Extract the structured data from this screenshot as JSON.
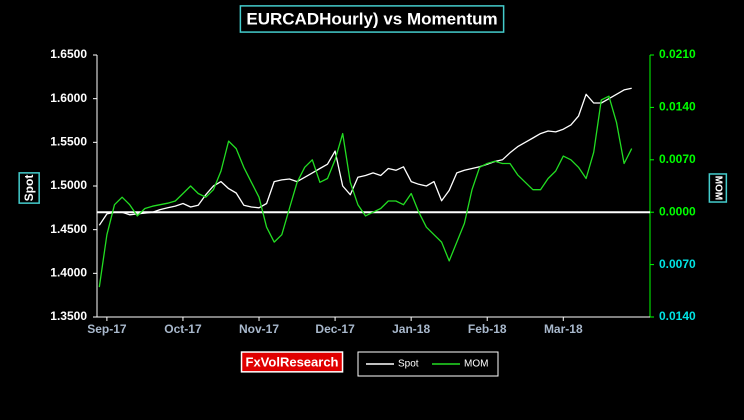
{
  "chart_data": {
    "type": "line",
    "title": "EURCADHourly) vs Momentum",
    "y_label": "Spot",
    "y2_label": "MOM",
    "watermark": "FxVolResearch",
    "x": [
      -0.1,
      0,
      0.1,
      0.2,
      0.3,
      0.4,
      0.5,
      0.6,
      0.7,
      0.8,
      0.9,
      1.0,
      1.1,
      1.2,
      1.3,
      1.4,
      1.5,
      1.6,
      1.7,
      1.8,
      1.9,
      2.0,
      2.1,
      2.2,
      2.3,
      2.4,
      2.5,
      2.6,
      2.7,
      2.8,
      2.9,
      3.0,
      3.1,
      3.2,
      3.3,
      3.4,
      3.5,
      3.6,
      3.7,
      3.8,
      3.9,
      4.0,
      4.1,
      4.2,
      4.3,
      4.4,
      4.5,
      4.6,
      4.7,
      4.8,
      4.9,
      5.0,
      5.1,
      5.2,
      5.3,
      5.4,
      5.5,
      5.6,
      5.7,
      5.8,
      5.9,
      6.0,
      6.1,
      6.2,
      6.3,
      6.4,
      6.5,
      6.6,
      6.7,
      6.8,
      6.9
    ],
    "xlim": [
      -0.13,
      7.14
    ],
    "xticks": [
      {
        "value": 0,
        "label": "Sep-17"
      },
      {
        "value": 1,
        "label": "Oct-17"
      },
      {
        "value": 2,
        "label": "Nov-17"
      },
      {
        "value": 3,
        "label": "Dec-17"
      },
      {
        "value": 4,
        "label": "Jan-18"
      },
      {
        "value": 5,
        "label": "Feb-18"
      },
      {
        "value": 6,
        "label": "Mar-18"
      }
    ],
    "ylim": [
      1.35,
      1.65
    ],
    "yticks": [
      {
        "value": 1.35,
        "label": "1.3500"
      },
      {
        "value": 1.4,
        "label": "1.4000"
      },
      {
        "value": 1.45,
        "label": "1.4500"
      },
      {
        "value": 1.5,
        "label": "1.5000"
      },
      {
        "value": 1.55,
        "label": "1.5500"
      },
      {
        "value": 1.6,
        "label": "1.6000"
      },
      {
        "value": 1.65,
        "label": "1.6500"
      }
    ],
    "y2lim": [
      -0.014,
      0.021
    ],
    "y2ticks": [
      {
        "value": -0.014,
        "label": "0.0140"
      },
      {
        "value": -0.007,
        "label": "0.0070"
      },
      {
        "value": 0,
        "label": "0.0000"
      },
      {
        "value": 0.007,
        "label": "0.0070"
      },
      {
        "value": 0.014,
        "label": "0.0140"
      },
      {
        "value": 0.021,
        "label": "0.0210"
      }
    ],
    "y2tick_color": "#00ff00",
    "series": [
      {
        "name": "Spot",
        "color": "#ffffff",
        "values": [
          1.455,
          1.468,
          1.47,
          1.47,
          1.467,
          1.468,
          1.469,
          1.47,
          1.473,
          1.475,
          1.477,
          1.48,
          1.476,
          1.478,
          1.49,
          1.5,
          1.505,
          1.497,
          1.492,
          1.478,
          1.476,
          1.475,
          1.48,
          1.505,
          1.507,
          1.508,
          1.505,
          1.51,
          1.515,
          1.52,
          1.525,
          1.54,
          1.5,
          1.49,
          1.51,
          1.512,
          1.515,
          1.512,
          1.52,
          1.518,
          1.522,
          1.505,
          1.502,
          1.5,
          1.505,
          1.483,
          1.495,
          1.515,
          1.518,
          1.52,
          1.522,
          1.525,
          1.528,
          1.53,
          1.538,
          1.545,
          1.55,
          1.555,
          1.56,
          1.563,
          1.562,
          1.565,
          1.57,
          1.58,
          1.605,
          1.595,
          1.595,
          1.6,
          1.605,
          1.61,
          1.612
        ]
      },
      {
        "name": "MOM",
        "color": "#22dd22",
        "axis": "y2",
        "values": [
          -0.01,
          -0.003,
          0.001,
          0.002,
          0.001,
          -0.0005,
          0.0005,
          0.0008,
          0.001,
          0.0012,
          0.0015,
          0.0025,
          0.0035,
          0.0025,
          0.002,
          0.003,
          0.0055,
          0.0095,
          0.0085,
          0.006,
          0.004,
          0.002,
          -0.002,
          -0.004,
          -0.003,
          0.0005,
          0.004,
          0.006,
          0.007,
          0.004,
          0.0045,
          0.007,
          0.0105,
          0.004,
          0.001,
          -0.0005,
          0.0,
          0.0005,
          0.0015,
          0.0015,
          0.001,
          0.0025,
          0.0,
          -0.002,
          -0.003,
          -0.004,
          -0.0065,
          -0.004,
          -0.0015,
          0.003,
          0.006,
          0.0065,
          0.0068,
          0.0065,
          0.0065,
          0.005,
          0.004,
          0.003,
          0.003,
          0.0045,
          0.0055,
          0.0075,
          0.007,
          0.006,
          0.0045,
          0.008,
          0.015,
          0.0155,
          0.012,
          0.0065,
          0.0085
        ]
      }
    ]
  }
}
